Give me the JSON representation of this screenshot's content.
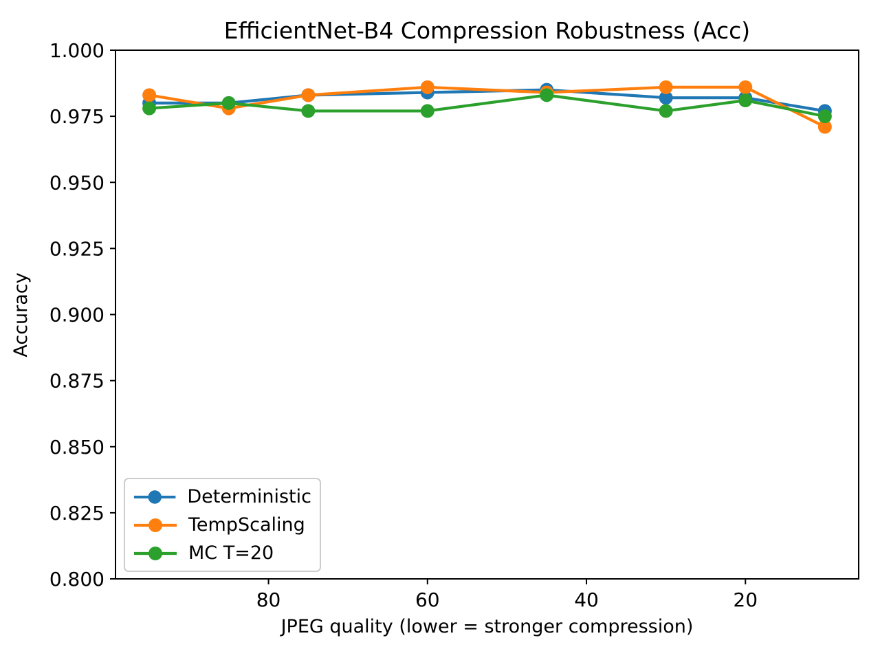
{
  "chart_data": {
    "type": "line",
    "title": "EfficientNet-B4 Compression Robustness (Acc)",
    "xlabel": "JPEG quality (lower = stronger compression)",
    "ylabel": "Accuracy",
    "x": [
      95,
      85,
      75,
      60,
      45,
      30,
      20,
      10
    ],
    "series": [
      {
        "name": "Deterministic",
        "color": "#1f77b4",
        "values": [
          0.98,
          0.98,
          0.983,
          0.984,
          0.985,
          0.982,
          0.982,
          0.977
        ]
      },
      {
        "name": "TempScaling",
        "color": "#ff7f0e",
        "values": [
          0.983,
          0.978,
          0.983,
          0.986,
          0.984,
          0.986,
          0.986,
          0.971
        ]
      },
      {
        "name": "MC T=20",
        "color": "#2ca02c",
        "values": [
          0.978,
          0.98,
          0.977,
          0.977,
          0.983,
          0.977,
          0.981,
          0.975
        ]
      }
    ],
    "xlim": [
      99.25,
      5.75
    ],
    "x_inverted": true,
    "ylim": [
      0.8,
      1.0
    ],
    "xticks": [
      80,
      60,
      40,
      20
    ],
    "yticks": [
      1.0,
      0.975,
      0.95,
      0.925,
      0.9,
      0.875,
      0.85,
      0.825,
      0.8
    ],
    "ytick_decimals": 3,
    "grid": false,
    "legend_position": "lower left",
    "marker": "circle",
    "background_color": "#ffffff",
    "spine_color": "#000000"
  }
}
